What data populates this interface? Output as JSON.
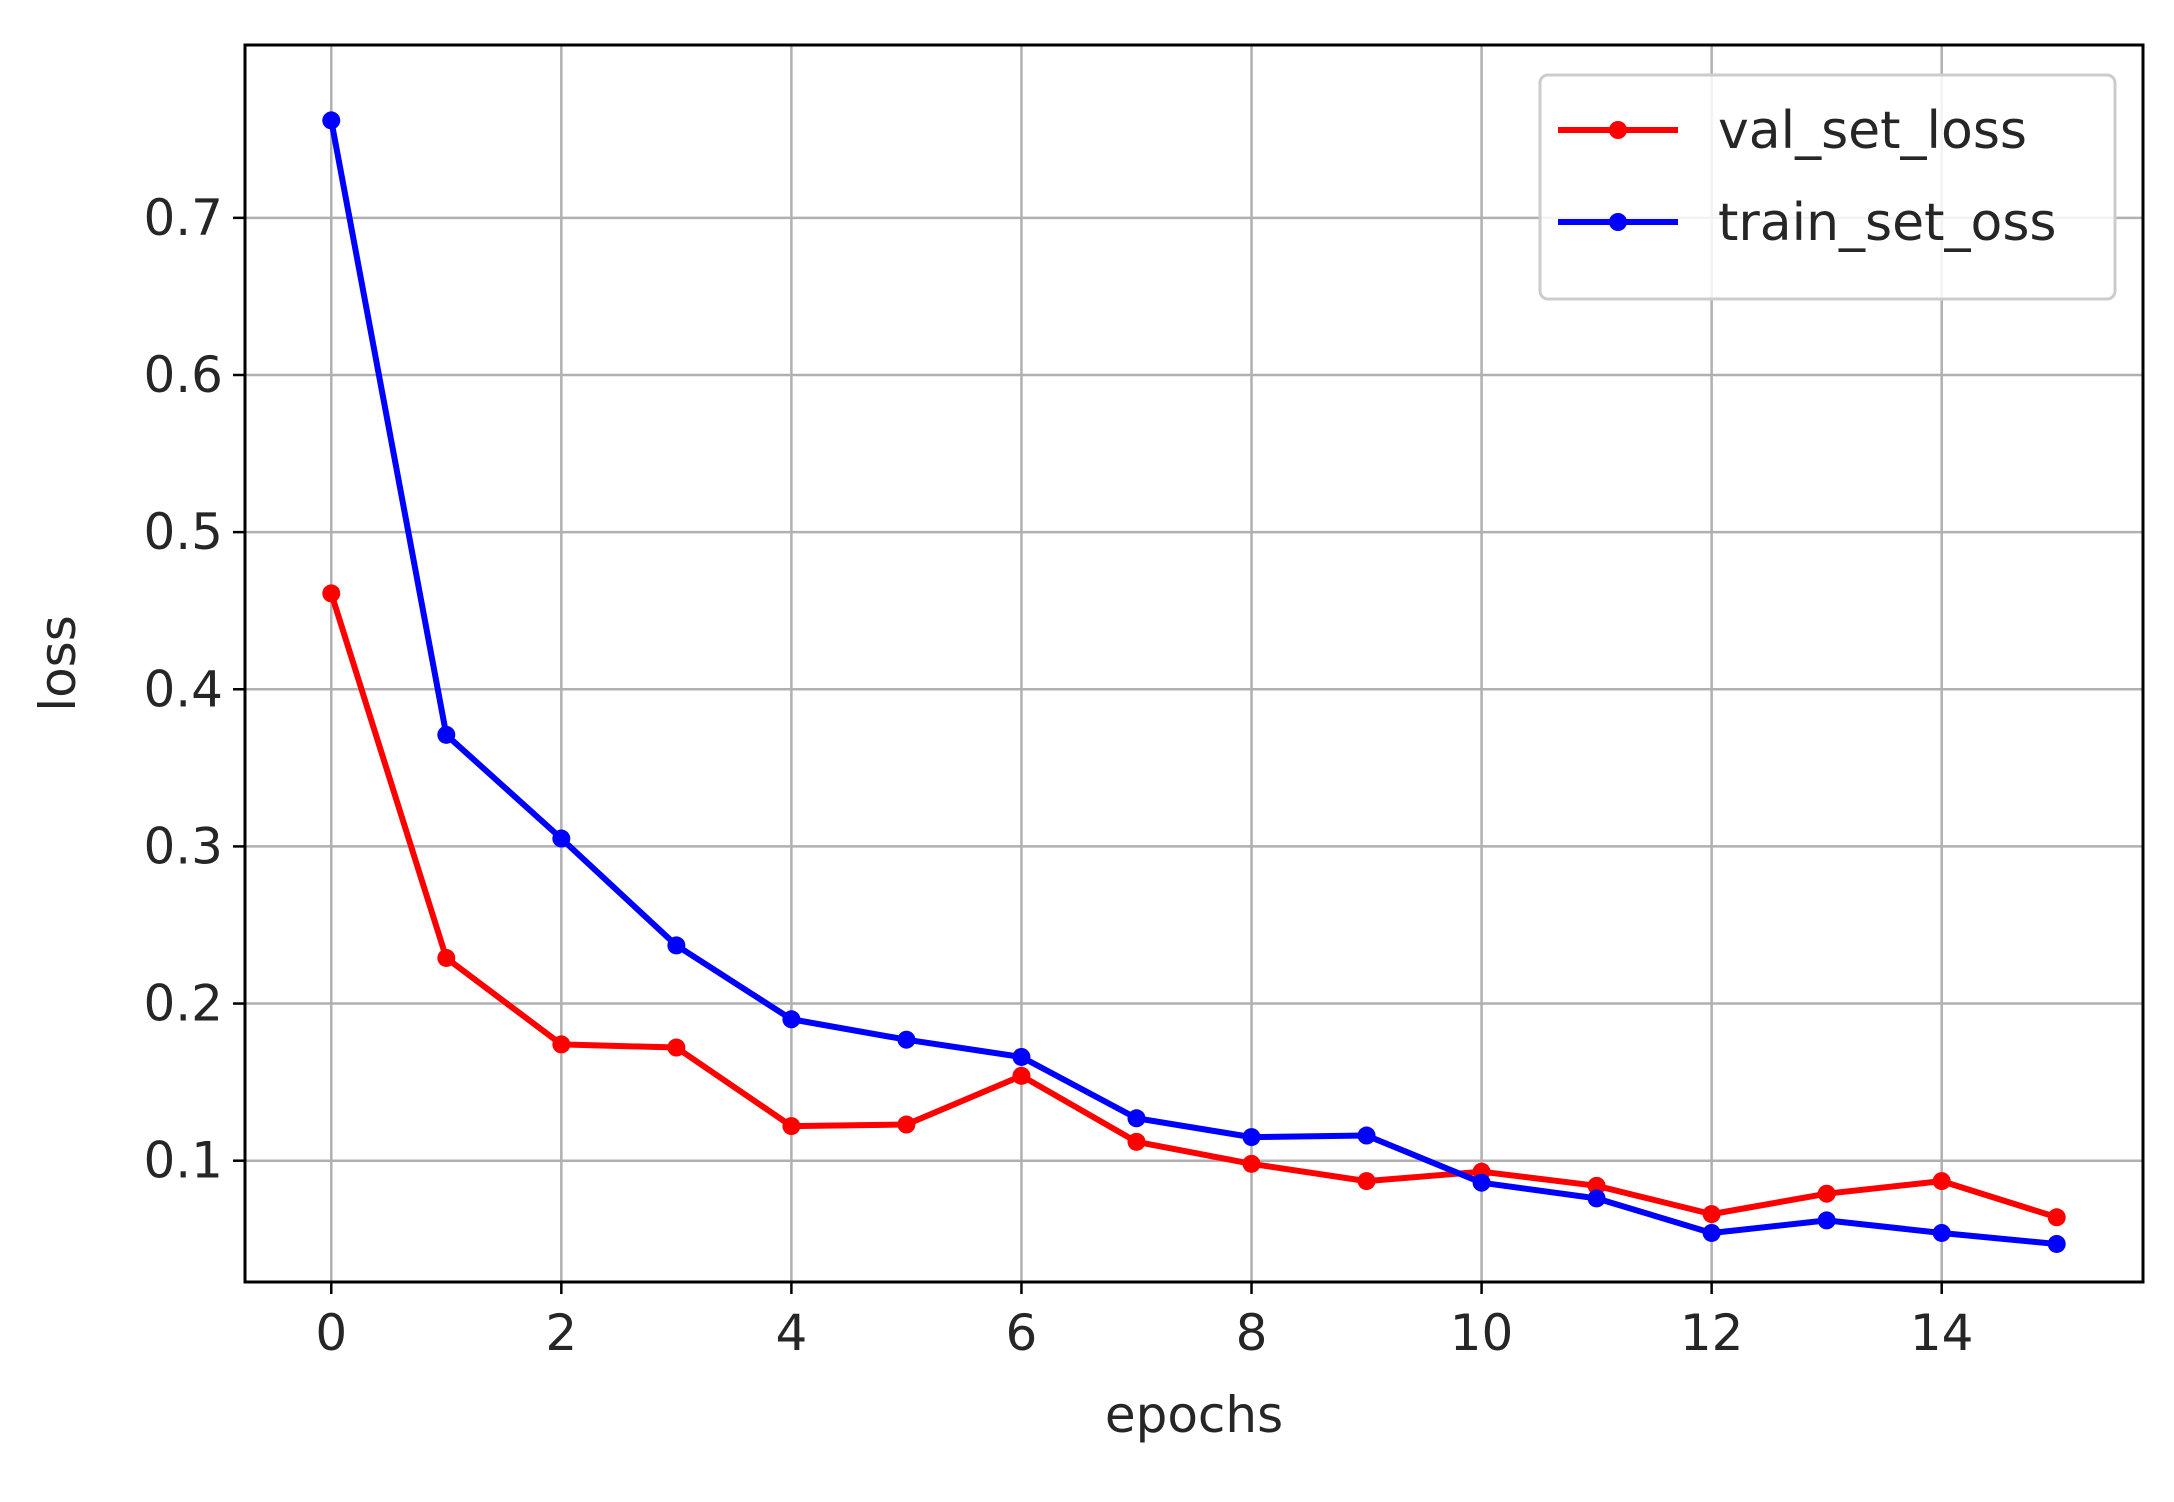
{
  "chart_data": {
    "type": "line",
    "title": "",
    "xlabel": "epochs",
    "ylabel": "loss",
    "xlim": [
      -0.75,
      15.75
    ],
    "ylim": [
      0.0228,
      0.81
    ],
    "xticks": [
      0,
      2,
      4,
      6,
      8,
      10,
      12,
      14
    ],
    "yticks": [
      0.1,
      0.2,
      0.3,
      0.4,
      0.5,
      0.6,
      0.7
    ],
    "grid": true,
    "legend_position": "upper-right",
    "x": [
      0,
      1,
      2,
      3,
      4,
      5,
      6,
      7,
      8,
      9,
      10,
      11,
      12,
      13,
      14,
      15
    ],
    "series": [
      {
        "name": "val_set_loss",
        "color": "#ff0000",
        "values": [
          0.461,
          0.229,
          0.174,
          0.172,
          0.122,
          0.123,
          0.154,
          0.112,
          0.098,
          0.087,
          0.093,
          0.084,
          0.066,
          0.079,
          0.087,
          0.064
        ]
      },
      {
        "name": "train_set_oss",
        "color": "#0000ff",
        "values": [
          0.762,
          0.371,
          0.305,
          0.237,
          0.19,
          0.177,
          0.166,
          0.127,
          0.115,
          0.116,
          0.086,
          0.076,
          0.054,
          0.062,
          0.054,
          0.047
        ]
      }
    ]
  }
}
